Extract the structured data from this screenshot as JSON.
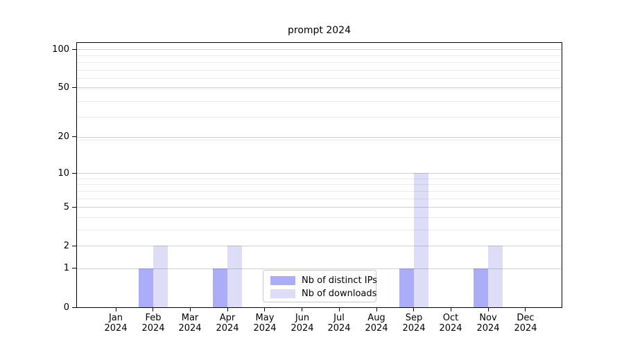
{
  "chart_data": {
    "type": "bar",
    "title": "prompt 2024",
    "categories": [
      "Jan 2024",
      "Feb 2024",
      "Mar 2024",
      "Apr 2024",
      "May 2024",
      "Jun 2024",
      "Jul 2024",
      "Aug 2024",
      "Sep 2024",
      "Oct 2024",
      "Nov 2024",
      "Dec 2024"
    ],
    "series": [
      {
        "name": "Nb of distinct IPs",
        "color": "#acadf8",
        "values": [
          0,
          1,
          0,
          1,
          0,
          0,
          0,
          0,
          1,
          0,
          1,
          0
        ]
      },
      {
        "name": "Nb of downloads",
        "color": "#ddddf8",
        "values": [
          0,
          2,
          0,
          2,
          0,
          0,
          0,
          0,
          10,
          0,
          2,
          0
        ]
      }
    ],
    "xlabel": "",
    "ylabel": "",
    "y_scale": "log1p",
    "y_axis": {
      "major_ticks": [
        0,
        1,
        2,
        5,
        10,
        20,
        50,
        100
      ],
      "minor_gridlines": [
        3,
        4,
        6,
        7,
        8,
        9,
        19,
        29,
        39,
        49,
        59,
        69,
        79,
        89
      ],
      "min": 0,
      "max": 112
    },
    "grid": "horizontal",
    "legend_position": "inside-bottom-center",
    "colors": {
      "grid_major": "rgba(0,0,0,0.18)",
      "grid_minor": "rgba(0,0,0,0.08)",
      "axis": "#000000",
      "legend_border": "#c9c9c9",
      "background": "#ffffff"
    }
  }
}
